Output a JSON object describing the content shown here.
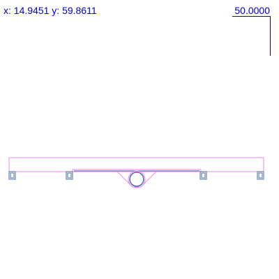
{
  "readout": {
    "x_label": "x:",
    "x_value": "14.9451",
    "y_label": "y:",
    "y_value": "59.8611"
  },
  "scale": {
    "value": "50.0000"
  },
  "colors": {
    "readout": "#0000cc",
    "geometry_pink": "#ee88ee",
    "geometry_blue": "#4a6fa5",
    "background": "#ffffff"
  }
}
